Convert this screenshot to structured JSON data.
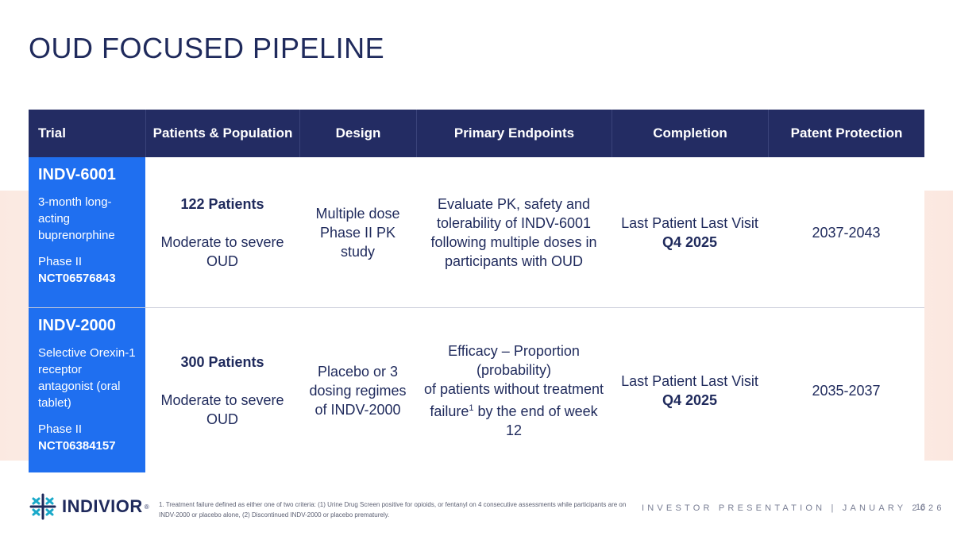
{
  "slide": {
    "title": "OUD FOCUSED PIPELINE"
  },
  "table": {
    "headers": [
      "Trial",
      "Patients & Population",
      "Design",
      "Primary Endpoints",
      "Completion",
      "Patent Protection"
    ],
    "rows": [
      {
        "trial_name": "INDV-6001",
        "trial_desc": "3-month long-acting buprenorphine",
        "trial_phase": "Phase II",
        "trial_nct": "NCT06576843",
        "patients": "122 Patients",
        "population": "Moderate to severe OUD",
        "design": "Multiple dose Phase II PK study",
        "endpoint": "Evaluate PK, safety and tolerability of INDV-6001 following multiple doses in participants with OUD",
        "completion_label": "Last Patient Last Visit",
        "completion_date": "Q4 2025",
        "patent": "2037-2043"
      },
      {
        "trial_name": "INDV-2000",
        "trial_desc": "Selective Orexin-1 receptor antagonist (oral tablet)",
        "trial_phase": "Phase II",
        "trial_nct": "NCT06384157",
        "patients": "300 Patients",
        "population": "Moderate to severe OUD",
        "design": "Placebo or 3 dosing regimes of INDV-2000",
        "endpoint_line1": "Efficacy – Proportion (probability)",
        "endpoint_line2": "of patients without treatment failure",
        "endpoint_sup": "1",
        "endpoint_line3": " by the end of week 12",
        "completion_label": "Last Patient Last Visit",
        "completion_date": "Q4 2025",
        "patent": "2035-2037"
      }
    ]
  },
  "footer": {
    "logo_text": "INDIVIOR",
    "logo_mark": "®",
    "footnote": "1. Treatment failure defined as either one of two criteria: (1) Urine Drug Screen positive for opioids, or fentanyl on 4 consecutive assessments while participants are on INDV-2000 or placebo alone, (2) Discontinued INDV-2000 or placebo prematurely.",
    "presentation": "INVESTOR PRESENTATION | JANUARY 2026",
    "page_number": "16"
  },
  "colors": {
    "navy": "#232c63",
    "blue": "#1f6ff0",
    "text": "#1f2a5c",
    "logo_teal": "#1aa9c9"
  }
}
